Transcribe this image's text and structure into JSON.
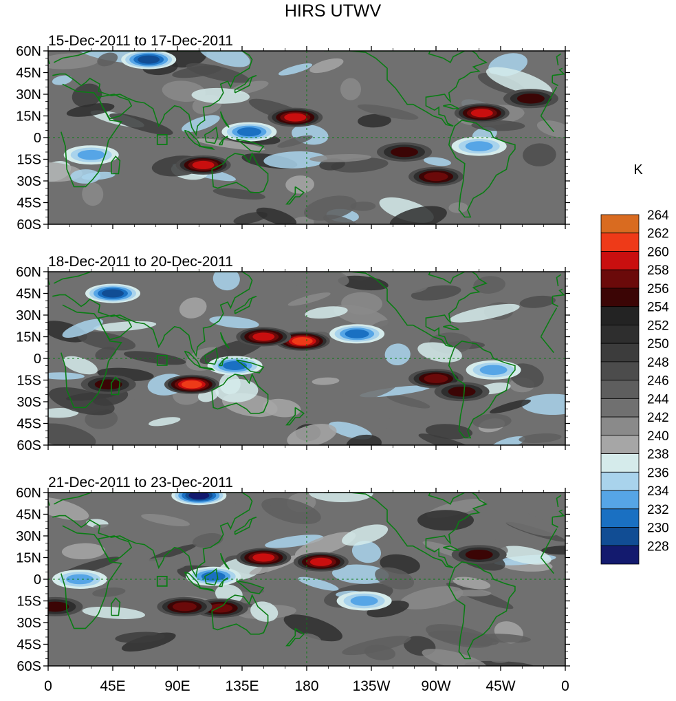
{
  "title": "HIRS UTWV",
  "colorbar": {
    "unit": "K",
    "levels": [
      228,
      230,
      232,
      234,
      236,
      238,
      240,
      242,
      244,
      246,
      248,
      250,
      252,
      254,
      256,
      258,
      260,
      262,
      264
    ],
    "colors": [
      "#131a6e",
      "#114d94",
      "#1a70c2",
      "#56a5e6",
      "#a9d3ec",
      "#d5ebeb",
      "#a6a6a6",
      "#8a8a8a",
      "#707070",
      "#5e5e5e",
      "#4c4c4c",
      "#3c3c3c",
      "#2e2e2e",
      "#232323",
      "#3b0505",
      "#6b0a0a",
      "#c90f0f",
      "#ee3a18",
      "#d96b20"
    ]
  },
  "land_color": "#0a7d14",
  "chart_data": [
    {
      "type": "heatmap",
      "title": "15-Dec-2011 to 17-Dec-2011",
      "xlim": [
        0,
        360
      ],
      "ylim": [
        -60,
        60
      ],
      "xticks": [
        "0",
        "45E",
        "90E",
        "135E",
        "180",
        "135W",
        "90W",
        "45W",
        "0"
      ],
      "yticks": [
        "60N",
        "45N",
        "30N",
        "15N",
        "0",
        "15S",
        "30S",
        "45S",
        "60S"
      ],
      "grid": "dashed lines at equator and 180",
      "features": [
        {
          "kind": "warm",
          "lon": 172,
          "lat": 14,
          "value": 260
        },
        {
          "kind": "warm",
          "lon": 108,
          "lat": -19,
          "value": 260
        },
        {
          "kind": "warm",
          "lon": 302,
          "lat": 17,
          "value": 260
        },
        {
          "kind": "warm",
          "lon": 270,
          "lat": -27,
          "value": 258
        },
        {
          "kind": "warm",
          "lon": 248,
          "lat": -10,
          "value": 256
        },
        {
          "kind": "warm",
          "lon": 336,
          "lat": 27,
          "value": 256
        },
        {
          "kind": "moist",
          "lon": 70,
          "lat": 54,
          "value": 230
        },
        {
          "kind": "moist",
          "lon": 140,
          "lat": 4,
          "value": 232
        },
        {
          "kind": "moist",
          "lon": 30,
          "lat": -12,
          "value": 234
        },
        {
          "kind": "moist",
          "lon": 300,
          "lat": -6,
          "value": 234
        }
      ]
    },
    {
      "type": "heatmap",
      "title": "18-Dec-2011 to 20-Dec-2011",
      "xlim": [
        0,
        360
      ],
      "ylim": [
        -60,
        60
      ],
      "xticks": [
        "0",
        "45E",
        "90E",
        "135E",
        "180",
        "135W",
        "90W",
        "45W",
        "0"
      ],
      "yticks": [
        "60N",
        "45N",
        "30N",
        "15N",
        "0",
        "15S",
        "30S",
        "45S",
        "60S"
      ],
      "grid": "dashed lines at equator and 180",
      "features": [
        {
          "kind": "warm",
          "lon": 177,
          "lat": 12,
          "value": 262
        },
        {
          "kind": "warm",
          "lon": 100,
          "lat": -18,
          "value": 262
        },
        {
          "kind": "warm",
          "lon": 150,
          "lat": 15,
          "value": 260
        },
        {
          "kind": "warm",
          "lon": 270,
          "lat": -14,
          "value": 258
        },
        {
          "kind": "warm",
          "lon": 288,
          "lat": -23,
          "value": 256
        },
        {
          "kind": "warm",
          "lon": 42,
          "lat": -18,
          "value": 256
        },
        {
          "kind": "moist",
          "lon": 45,
          "lat": 45,
          "value": 230
        },
        {
          "kind": "moist",
          "lon": 215,
          "lat": 17,
          "value": 232
        },
        {
          "kind": "moist",
          "lon": 130,
          "lat": -5,
          "value": 232
        },
        {
          "kind": "moist",
          "lon": 310,
          "lat": -8,
          "value": 234
        }
      ]
    },
    {
      "type": "heatmap",
      "title": "21-Dec-2011 to 23-Dec-2011",
      "xlim": [
        0,
        360
      ],
      "ylim": [
        -60,
        60
      ],
      "xticks": [
        "0",
        "45E",
        "90E",
        "135E",
        "180",
        "135W",
        "90W",
        "45W",
        "0"
      ],
      "yticks": [
        "60N",
        "45N",
        "30N",
        "15N",
        "0",
        "15S",
        "30S",
        "45S",
        "60S"
      ],
      "grid": "dashed lines at equator and 180",
      "features": [
        {
          "kind": "warm",
          "lon": 150,
          "lat": 15,
          "value": 260
        },
        {
          "kind": "warm",
          "lon": 190,
          "lat": 12,
          "value": 260
        },
        {
          "kind": "warm",
          "lon": 120,
          "lat": -20,
          "value": 258
        },
        {
          "kind": "warm",
          "lon": 95,
          "lat": -19,
          "value": 258
        },
        {
          "kind": "warm",
          "lon": 5,
          "lat": -19,
          "value": 256
        },
        {
          "kind": "warm",
          "lon": 300,
          "lat": 17,
          "value": 256
        },
        {
          "kind": "moist",
          "lon": 105,
          "lat": 58,
          "value": 228
        },
        {
          "kind": "moist",
          "lon": 115,
          "lat": 2,
          "value": 232
        },
        {
          "kind": "moist",
          "lon": 22,
          "lat": 0,
          "value": 234
        },
        {
          "kind": "moist",
          "lon": 220,
          "lat": -15,
          "value": 234
        }
      ]
    }
  ]
}
